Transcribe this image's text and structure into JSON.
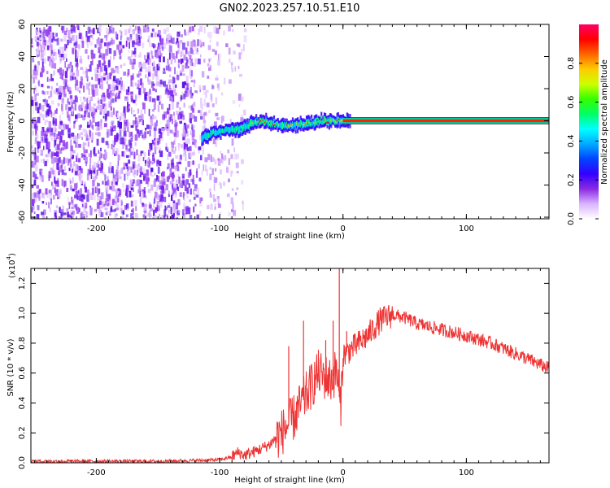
{
  "title": "GN02.2023.257.10.51.E10",
  "chart_data": [
    {
      "type": "heatmap",
      "xlabel": "Height of straight line (km)",
      "ylabel": "Frequency (Hz)",
      "xlim": [
        -253,
        167
      ],
      "ylim": [
        -61,
        60
      ],
      "x_ticks": [
        -200,
        -100,
        0,
        100
      ],
      "x_tick_labels": [
        "-200",
        "-100",
        "0",
        "100"
      ],
      "y_ticks": [
        -60,
        -40,
        -20,
        0,
        20,
        40,
        60
      ],
      "y_tick_labels": [
        "-60",
        "-40",
        "-20",
        "0",
        "20",
        "40",
        "60"
      ],
      "signal_track": {
        "x": [
          -115,
          -105,
          -95,
          -85,
          -75,
          -65,
          -55,
          -45,
          -35,
          -25,
          -15,
          -5,
          5,
          60,
          120,
          167
        ],
        "y": [
          -11,
          -7,
          -6,
          -5,
          -2,
          0,
          -2,
          -3,
          -2,
          -1,
          0,
          0,
          0,
          0,
          0,
          0
        ]
      },
      "noise_region": {
        "x_start": -253,
        "x_end": -80
      },
      "colorbar": {
        "label": "Normalized spectral amplitude",
        "range": [
          0.0,
          1.0
        ],
        "ticks": [
          0.0,
          0.2,
          0.4,
          0.6,
          0.8
        ],
        "tick_labels": [
          "0.0",
          "0.2",
          "0.4",
          "0.6",
          "0.8"
        ],
        "colormap": [
          "#ffffff",
          "#d9b3ff",
          "#8a2be2",
          "#3300ff",
          "#0044ff",
          "#00aaff",
          "#00ffff",
          "#00ff66",
          "#33ff00",
          "#ccff00",
          "#ffcc00",
          "#ff6600",
          "#ff0000",
          "#ff0066"
        ]
      },
      "grid": false
    },
    {
      "type": "line",
      "xlabel": "Height of straight line (km)",
      "ylabel": "SNR (10 * v/v)",
      "y_multiplier": "(x10",
      "y_multiplier_exp": "4",
      "y_multiplier_close": ")",
      "xlim": [
        -253,
        167
      ],
      "ylim": [
        0.0,
        1.3
      ],
      "x_ticks": [
        -200,
        -100,
        0,
        100
      ],
      "x_tick_labels": [
        "-200",
        "-100",
        "0",
        "100"
      ],
      "y_ticks": [
        0.0,
        0.2,
        0.4,
        0.6,
        0.8,
        1.0,
        1.2
      ],
      "y_tick_labels": [
        "0.0",
        "0.2",
        "0.4",
        "0.6",
        "0.8",
        "1.0",
        "1.2"
      ],
      "series": [
        {
          "color": "#ee3333",
          "x": [
            -253,
            -200,
            -150,
            -120,
            -100,
            -90,
            -85,
            -80,
            -70,
            -60,
            -50,
            -40,
            -30,
            -20,
            -10,
            -5,
            -2,
            0,
            10,
            20,
            30,
            40,
            50,
            60,
            80,
            100,
            120,
            140,
            167
          ],
          "y": [
            0.01,
            0.01,
            0.01,
            0.015,
            0.02,
            0.04,
            0.07,
            0.05,
            0.08,
            0.12,
            0.2,
            0.3,
            0.45,
            0.6,
            0.55,
            0.62,
            0.35,
            0.72,
            0.78,
            0.85,
            0.95,
            0.99,
            0.97,
            0.93,
            0.89,
            0.85,
            0.8,
            0.73,
            0.63
          ]
        }
      ],
      "spikes": [
        {
          "x": -44,
          "y": 0.78
        },
        {
          "x": -32,
          "y": 0.95
        },
        {
          "x": -20,
          "y": 0.65
        },
        {
          "x": -14,
          "y": 0.82
        },
        {
          "x": -8,
          "y": 0.95
        },
        {
          "x": -3,
          "y": 1.3
        },
        {
          "x": 3,
          "y": 0.88
        }
      ],
      "grid": false
    }
  ]
}
